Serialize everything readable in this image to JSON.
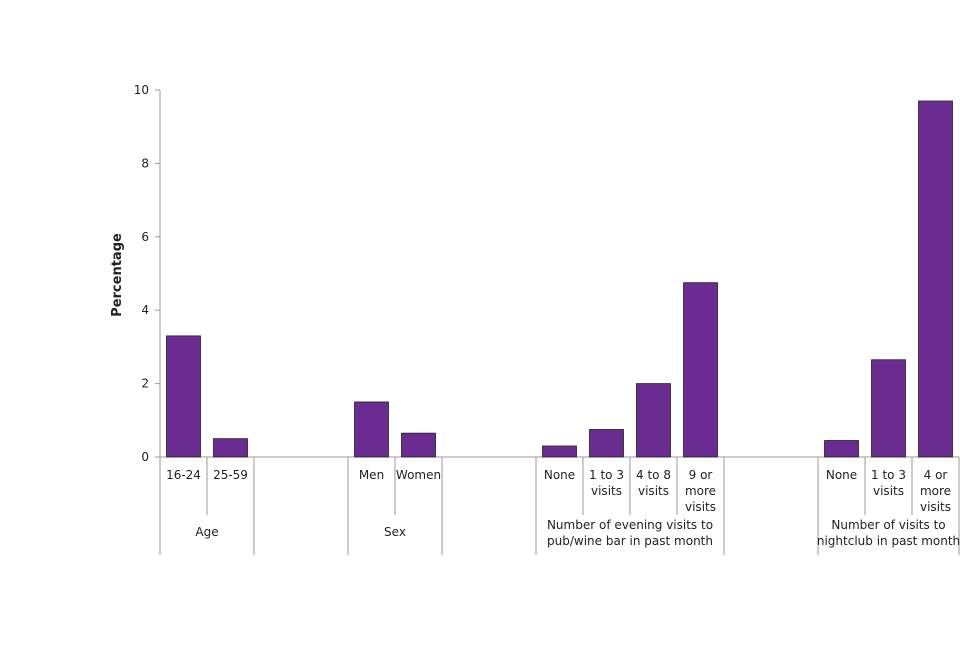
{
  "chart_data": {
    "type": "bar",
    "title": "",
    "ylabel": "Percentage",
    "xlabel": "",
    "ylim": [
      0,
      10
    ],
    "yticks": [
      "0",
      "2",
      "4",
      "6",
      "8",
      "10"
    ],
    "grid": false,
    "legend": "none",
    "bar_color": "#6a2c91",
    "groups": [
      {
        "label_lines": [
          "Age"
        ],
        "categories": [
          {
            "label_lines": [
              "16-24"
            ],
            "value": 3.3
          },
          {
            "label_lines": [
              "25-59"
            ],
            "value": 0.5
          }
        ]
      },
      {
        "label_lines": [
          "Sex"
        ],
        "categories": [
          {
            "label_lines": [
              "Men"
            ],
            "value": 1.5
          },
          {
            "label_lines": [
              "Women"
            ],
            "value": 0.65
          }
        ]
      },
      {
        "label_lines": [
          "Number of evening visits to",
          "pub/wine bar  in past month"
        ],
        "categories": [
          {
            "label_lines": [
              "None"
            ],
            "value": 0.3
          },
          {
            "label_lines": [
              "1 to 3",
              "visits"
            ],
            "value": 0.75
          },
          {
            "label_lines": [
              "4 to 8",
              "visits"
            ],
            "value": 2.0
          },
          {
            "label_lines": [
              "9 or",
              "more",
              "visits"
            ],
            "value": 4.75
          }
        ]
      },
      {
        "label_lines": [
          "Number of visits to",
          "nightclub in past month"
        ],
        "categories": [
          {
            "label_lines": [
              "None"
            ],
            "value": 0.45
          },
          {
            "label_lines": [
              "1 to 3",
              "visits"
            ],
            "value": 2.65
          },
          {
            "label_lines": [
              "4 or",
              "more",
              "visits"
            ],
            "value": 9.7
          }
        ]
      }
    ]
  }
}
